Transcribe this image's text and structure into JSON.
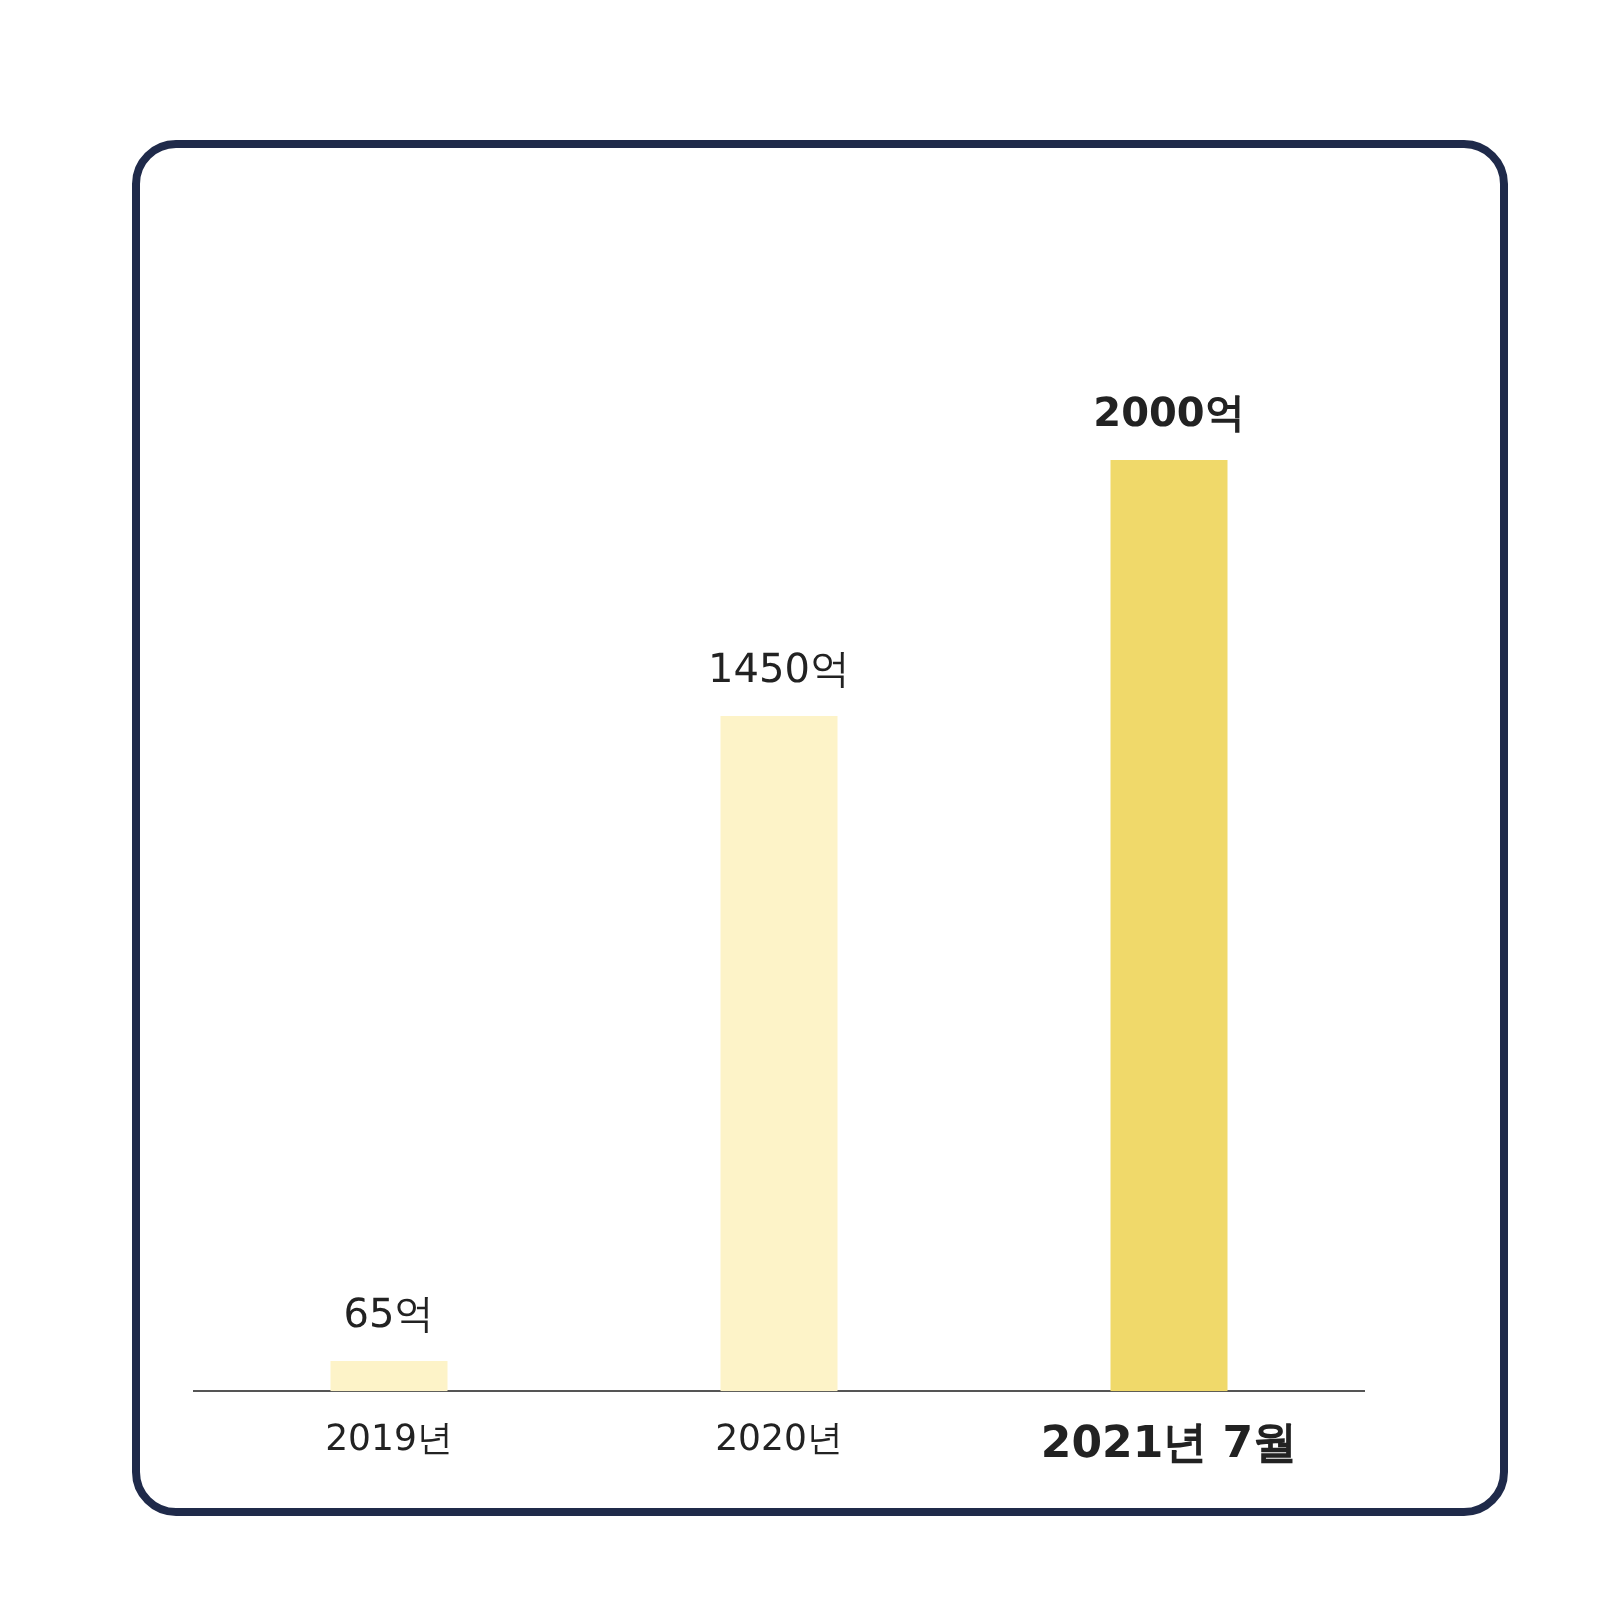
{
  "chart_data": {
    "type": "bar",
    "categories": [
      "2019년",
      "2020년",
      "2021년 7월"
    ],
    "values": [
      65,
      1450,
      2000
    ],
    "colors": [
      "#fdf3c8",
      "#fdf3c8",
      "#f0d96a"
    ],
    "value_labels": [
      "65억",
      "1450억",
      "2000억"
    ],
    "grid": false,
    "legend": false
  }
}
